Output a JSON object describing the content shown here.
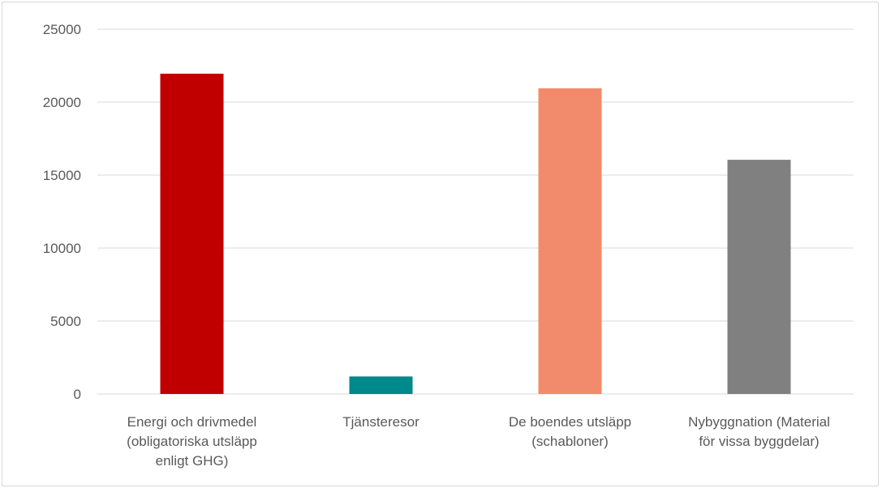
{
  "chart_data": {
    "type": "bar",
    "title": "",
    "xlabel": "",
    "ylabel": "",
    "ylim": [
      0,
      25000
    ],
    "yticks": [
      0,
      5000,
      10000,
      15000,
      20000,
      25000
    ],
    "grid": true,
    "legend": "none",
    "categories": [
      [
        "Energi och drivmedel",
        "(obligatoriska utsläpp",
        "enligt GHG)"
      ],
      [
        "Tjänsteresor"
      ],
      [
        "De boendes utsläpp",
        "(schabloner)"
      ],
      [
        "Nybyggnation (Material",
        "för vissa byggdelar)"
      ]
    ],
    "values": [
      21950,
      1200,
      20950,
      16050
    ],
    "colors": [
      "#c00000",
      "#00898a",
      "#f28b6b",
      "#808080"
    ]
  }
}
